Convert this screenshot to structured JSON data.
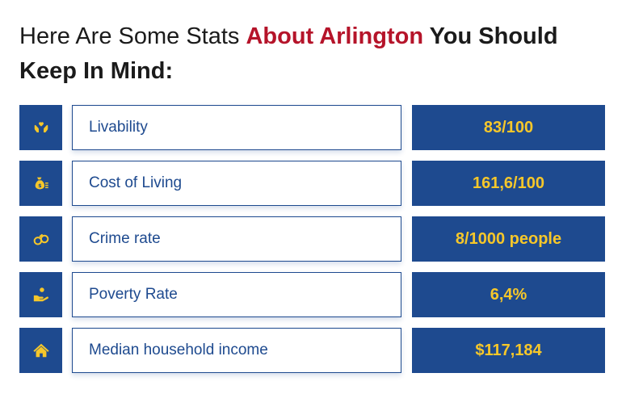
{
  "heading": {
    "lead": "Here Are Some Stats ",
    "accent": "About Arlington",
    "tail": " You Should Keep In Mind:"
  },
  "colors": {
    "brand_blue": "#1e4a8f",
    "value_yellow": "#f6c72a",
    "accent_red": "#b5142a"
  },
  "stats": [
    {
      "icon": "hands-heart-icon",
      "label": "Livability",
      "value": "83/100"
    },
    {
      "icon": "money-bag-icon",
      "label": "Cost of Living",
      "value": "161,6/100"
    },
    {
      "icon": "handcuffs-icon",
      "label": "Crime rate",
      "value": "8/1000 people"
    },
    {
      "icon": "hand-coin-icon",
      "label": "Poverty Rate",
      "value": "6,4%"
    },
    {
      "icon": "house-icon",
      "label": "Median household income",
      "value": "$117,184"
    }
  ]
}
